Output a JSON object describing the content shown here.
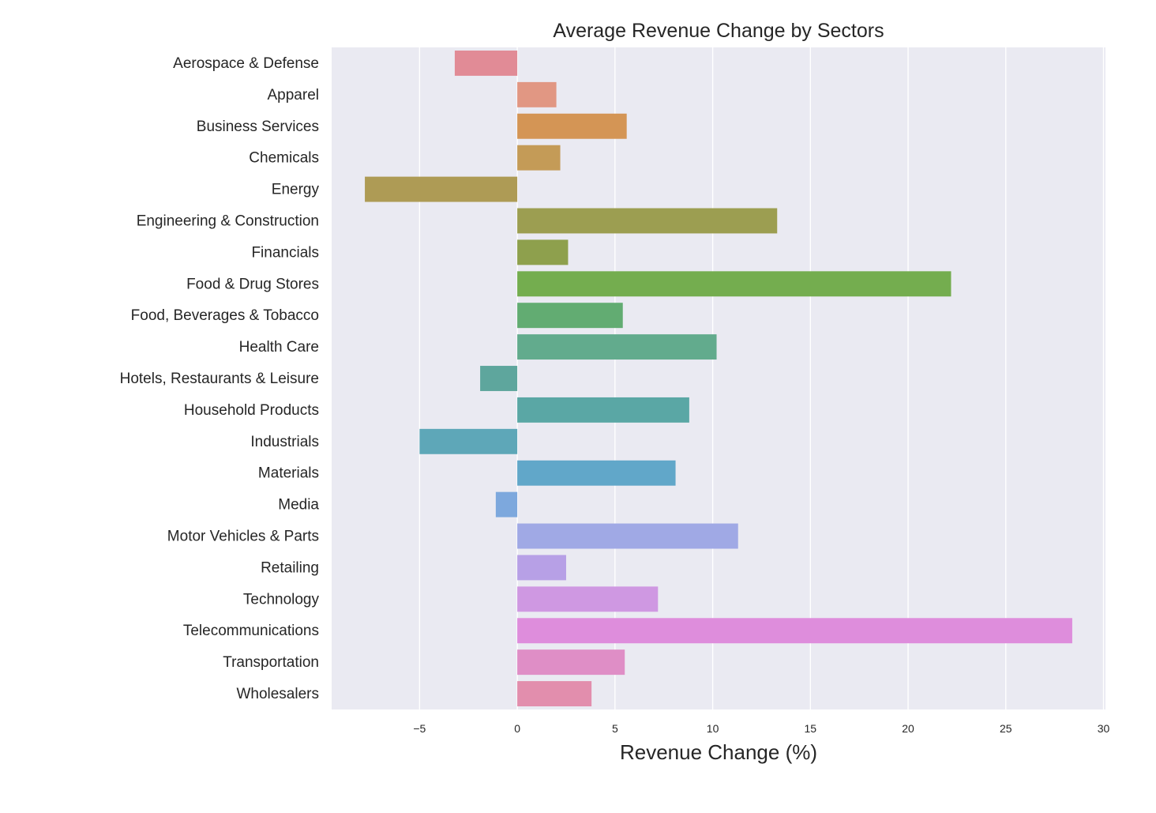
{
  "chart_data": {
    "type": "bar",
    "orientation": "horizontal",
    "title": "Average Revenue Change by Sectors",
    "xlabel": "Revenue Change (%)",
    "ylabel": "",
    "xlim": [
      -9.5,
      30.1
    ],
    "xticks": [
      -5,
      0,
      5,
      10,
      15,
      20,
      25,
      30
    ],
    "xtick_labels": [
      "−5",
      "0",
      "5",
      "10",
      "15",
      "20",
      "25",
      "30"
    ],
    "grid": true,
    "categories": [
      "Aerospace & Defense",
      "Apparel",
      "Business Services",
      "Chemicals",
      "Energy",
      "Engineering & Construction",
      "Financials",
      "Food & Drug Stores",
      "Food, Beverages & Tobacco",
      "Health Care",
      "Hotels, Restaurants & Leisure",
      "Household Products",
      "Industrials",
      "Materials",
      "Media",
      "Motor Vehicles & Parts",
      "Retailing",
      "Technology",
      "Telecommunications",
      "Transportation",
      "Wholesalers"
    ],
    "values": [
      -3.2,
      2.0,
      5.6,
      2.2,
      -7.8,
      13.3,
      2.6,
      22.2,
      5.4,
      10.2,
      -1.9,
      8.8,
      -5.0,
      8.1,
      -1.1,
      11.3,
      2.5,
      7.2,
      28.4,
      5.5,
      3.8
    ],
    "colors": [
      "#e18b96",
      "#e19783",
      "#d49555",
      "#c49b57",
      "#ae9b55",
      "#9c9e51",
      "#8ea04d",
      "#74ad4f",
      "#62ac72",
      "#62ab8d",
      "#5ea69d",
      "#5aa7a5",
      "#5ea7b8",
      "#61a7c9",
      "#7da8dd",
      "#a0a9e5",
      "#b7a0e6",
      "#cf98e2",
      "#de8ddc",
      "#df8ec6",
      "#e28ead"
    ]
  }
}
